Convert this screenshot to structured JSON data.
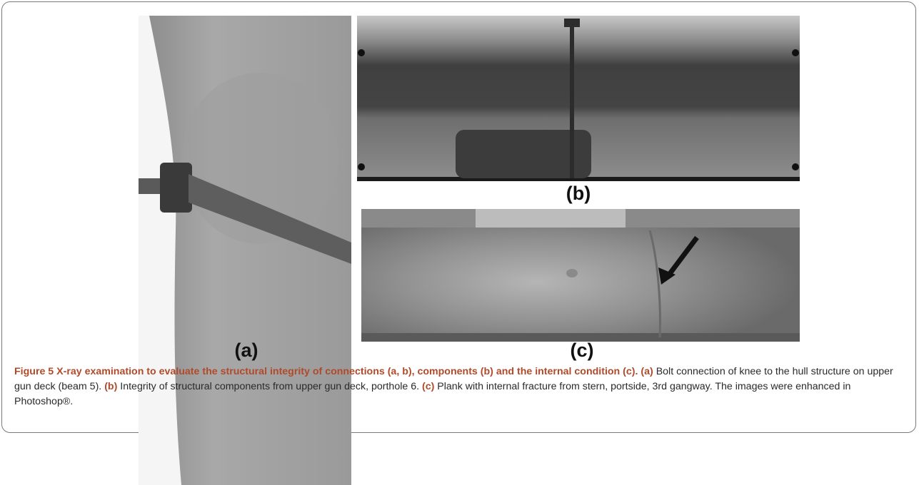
{
  "figure": {
    "panels": [
      {
        "id": "a",
        "label": "(a)"
      },
      {
        "id": "b",
        "label": "(b)"
      },
      {
        "id": "c",
        "label": "(c)"
      }
    ],
    "caption": {
      "figure_label": "Figure 5",
      "title": "X-ray examination to evaluate the structural integrity of connections (a, b), components (b) and the internal condition (c).",
      "a_label": "(a)",
      "a_text": "Bolt connection of knee to the hull structure on upper gun deck (beam 5).",
      "b_label": "(b)",
      "b_text": "Integrity of structural components from upper gun deck, porthole 6.",
      "c_label": "(c)",
      "c_text": "Plank with internal fracture from stern, portside, 3rd gangway. The images were enhanced in Photoshop®."
    }
  }
}
